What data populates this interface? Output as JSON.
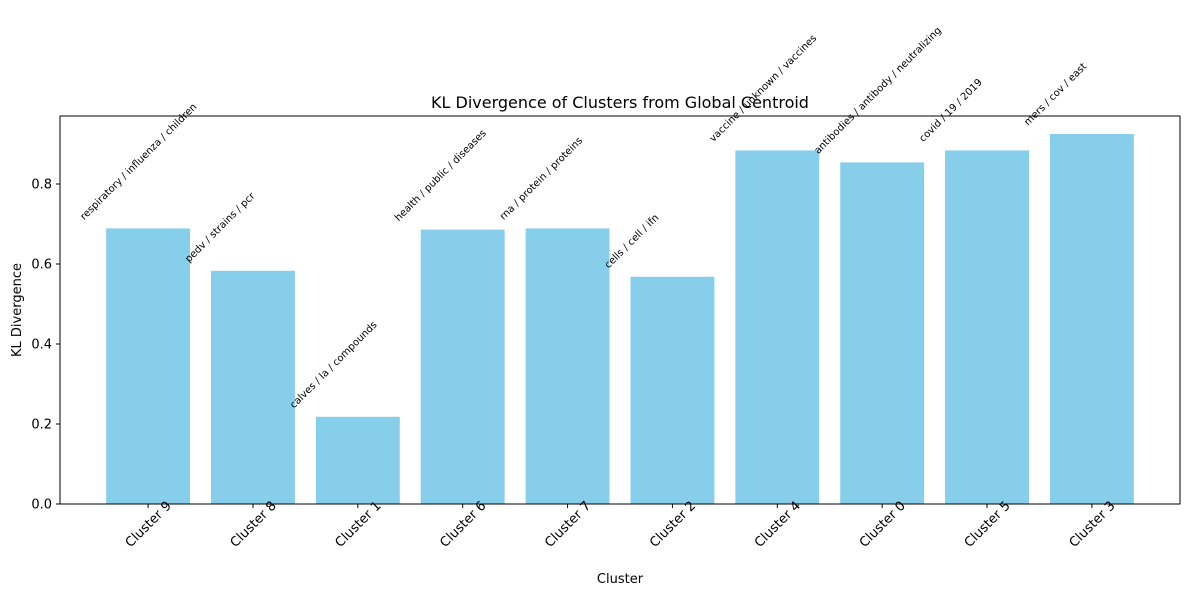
{
  "chart_data": {
    "type": "bar",
    "title": "KL Divergence of Clusters from Global Centroid",
    "xlabel": "Cluster",
    "ylabel": "KL Divergence",
    "categories": [
      "Cluster 9",
      "Cluster 8",
      "Cluster 1",
      "Cluster 6",
      "Cluster 7",
      "Cluster 2",
      "Cluster 4",
      "Cluster 0",
      "Cluster 5",
      "Cluster 3"
    ],
    "values": [
      0.689,
      0.583,
      0.218,
      0.686,
      0.689,
      0.568,
      0.884,
      0.854,
      0.884,
      0.925
    ],
    "annotations": [
      "respiratory / influenza / children",
      "pedv / strains / pcr",
      "calves / la / compounds",
      "health / public / diseases",
      "rna / protein / proteins",
      "cells / cell / ifn",
      "vaccine / unknown / vaccines",
      "antibodies / antibody / neutralizing",
      "covid / 19 / 2019",
      "mers / cov / east"
    ],
    "ylim": [
      0,
      0.97
    ],
    "yticks": [
      0.0,
      0.2,
      0.4,
      0.6,
      0.8
    ],
    "ytick_labels": [
      "0.0",
      "0.2",
      "0.4",
      "0.6",
      "0.8"
    ],
    "bar_color": "#87ceeb",
    "grid": false,
    "xtick_rotation_deg": 45,
    "annotation_rotation_deg": 45
  }
}
